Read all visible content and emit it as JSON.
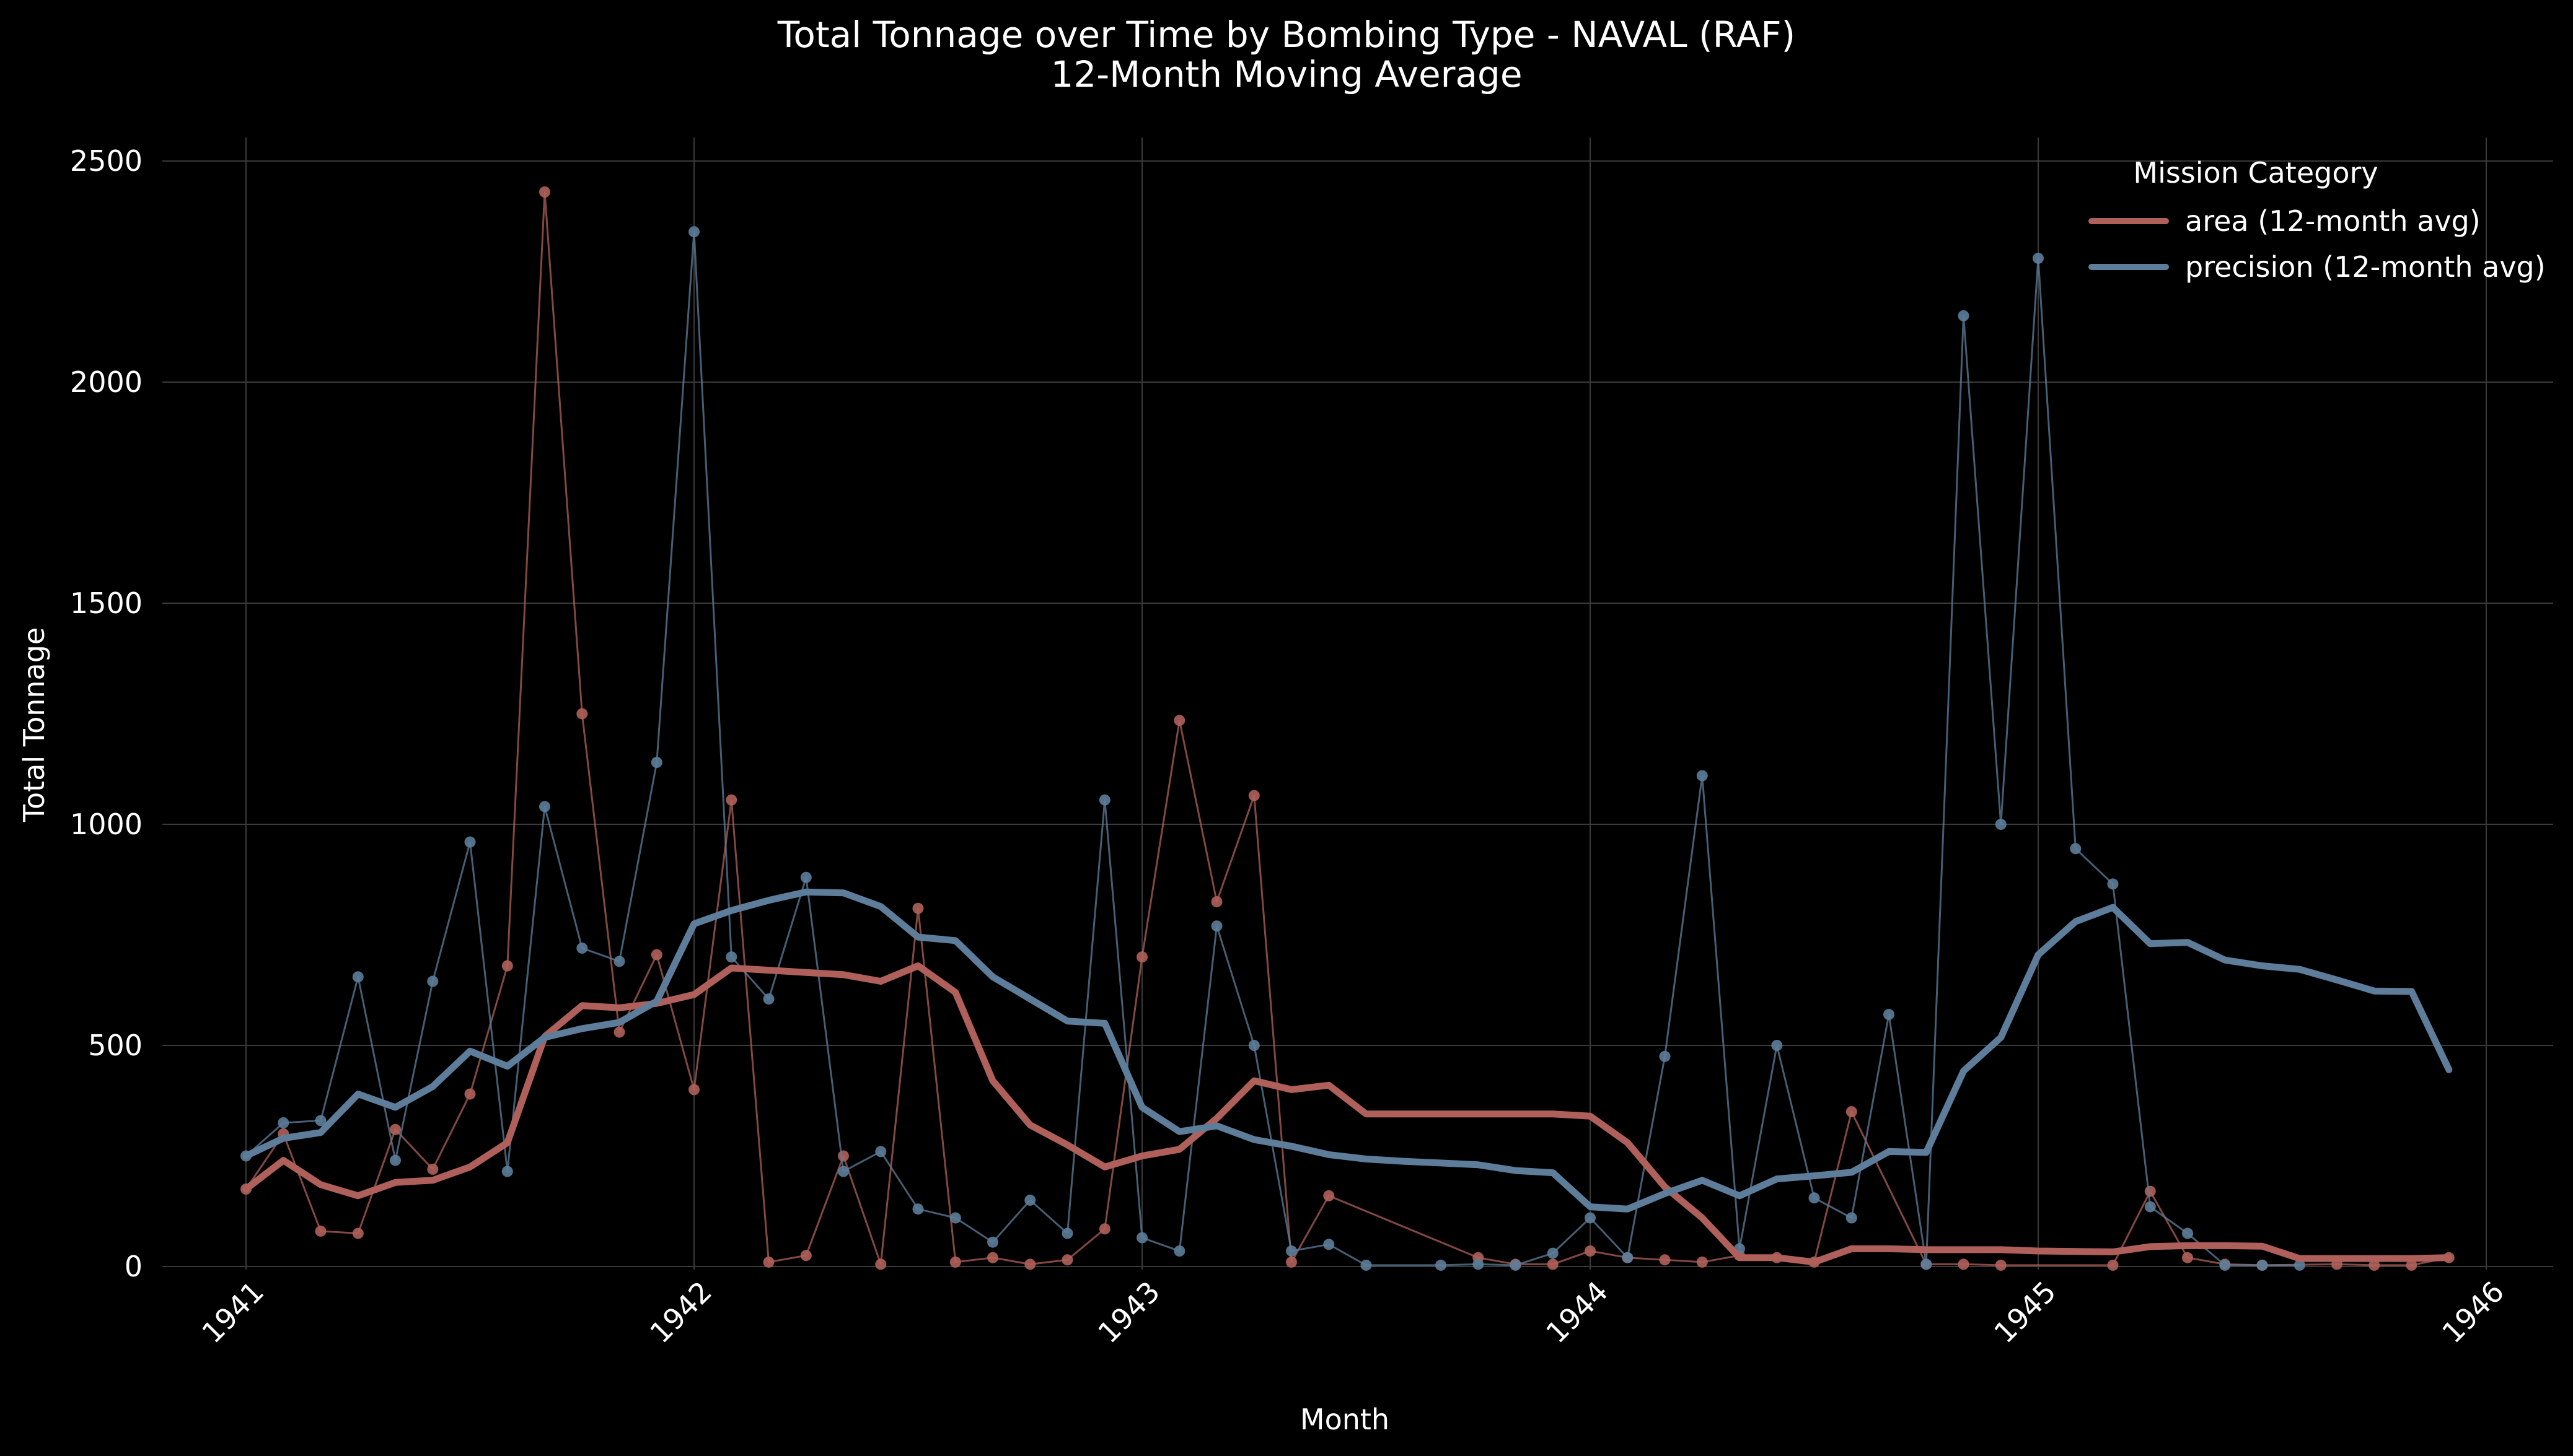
{
  "chart_data": {
    "type": "line",
    "title": "Total Tonnage over Time by Bombing Type - NAVAL (RAF)",
    "subtitle": "12-Month Moving Average",
    "xlabel": "Month",
    "ylabel": "Total Tonnage",
    "xlim": [
      "1941-01",
      "1946-01"
    ],
    "ylim": [
      0,
      2550
    ],
    "x_ticks": [
      "1941",
      "1942",
      "1943",
      "1944",
      "1945",
      "1946"
    ],
    "y_ticks": [
      0,
      500,
      1000,
      1500,
      2000,
      2500
    ],
    "grid": true,
    "legend": {
      "title": "Mission Category",
      "position": "top-right"
    },
    "series": [
      {
        "name": "area (12-month avg)",
        "color": "#b0605a",
        "raw_points": [
          [
            "1941-01",
            175
          ],
          [
            "1941-02",
            300
          ],
          [
            "1941-03",
            80
          ],
          [
            "1941-04",
            75
          ],
          [
            "1941-05",
            310
          ],
          [
            "1941-06",
            220
          ],
          [
            "1941-07",
            390
          ],
          [
            "1941-08",
            680
          ],
          [
            "1941-09",
            2430
          ],
          [
            "1941-10",
            1250
          ],
          [
            "1941-11",
            530
          ],
          [
            "1941-12",
            705
          ],
          [
            "1942-01",
            400
          ],
          [
            "1942-02",
            1055
          ],
          [
            "1942-03",
            10
          ],
          [
            "1942-04",
            25
          ],
          [
            "1942-05",
            250
          ],
          [
            "1942-06",
            5
          ],
          [
            "1942-07",
            810
          ],
          [
            "1942-08",
            10
          ],
          [
            "1942-09",
            20
          ],
          [
            "1942-10",
            5
          ],
          [
            "1942-11",
            15
          ],
          [
            "1942-12",
            85
          ],
          [
            "1943-01",
            700
          ],
          [
            "1943-02",
            1235
          ],
          [
            "1943-03",
            825
          ],
          [
            "1943-04",
            1065
          ],
          [
            "1943-05",
            10
          ],
          [
            "1943-06",
            160
          ],
          [
            "1943-10",
            20
          ],
          [
            "1943-11",
            5
          ],
          [
            "1943-12",
            5
          ],
          [
            "1944-01",
            35
          ],
          [
            "1944-02",
            20
          ],
          [
            "1944-03",
            15
          ],
          [
            "1944-04",
            10
          ],
          [
            "1944-05",
            25
          ],
          [
            "1944-06",
            20
          ],
          [
            "1944-07",
            10
          ],
          [
            "1944-08",
            350
          ],
          [
            "1944-10",
            5
          ],
          [
            "1944-11",
            5
          ],
          [
            "1944-12",
            3
          ],
          [
            "1945-03",
            3
          ],
          [
            "1945-04",
            170
          ],
          [
            "1945-05",
            20
          ],
          [
            "1945-06",
            5
          ],
          [
            "1945-07",
            3
          ],
          [
            "1945-09",
            5
          ],
          [
            "1945-10",
            3
          ],
          [
            "1945-11",
            3
          ],
          [
            "1945-12",
            20
          ]
        ],
        "avg_points": [
          [
            "1941-01",
            175
          ],
          [
            "1941-02",
            240
          ],
          [
            "1941-03",
            185
          ],
          [
            "1941-04",
            160
          ],
          [
            "1941-05",
            190
          ],
          [
            "1941-06",
            195
          ],
          [
            "1941-07",
            225
          ],
          [
            "1941-08",
            280
          ],
          [
            "1941-09",
            520
          ],
          [
            "1941-10",
            590
          ],
          [
            "1941-11",
            585
          ],
          [
            "1941-12",
            595
          ],
          [
            "1942-01",
            615
          ],
          [
            "1942-02",
            675
          ],
          [
            "1942-03",
            670
          ],
          [
            "1942-04",
            665
          ],
          [
            "1942-05",
            660
          ],
          [
            "1942-06",
            645
          ],
          [
            "1942-07",
            680
          ],
          [
            "1942-08",
            620
          ],
          [
            "1942-09",
            420
          ],
          [
            "1942-10",
            320
          ],
          [
            "1942-11",
            275
          ],
          [
            "1942-12",
            225
          ],
          [
            "1943-01",
            250
          ],
          [
            "1943-02",
            265
          ],
          [
            "1943-03",
            335
          ],
          [
            "1943-04",
            420
          ],
          [
            "1943-05",
            400
          ],
          [
            "1943-06",
            410
          ],
          [
            "1943-07",
            345
          ],
          [
            "1943-08",
            345
          ],
          [
            "1943-09",
            345
          ],
          [
            "1943-10",
            345
          ],
          [
            "1943-11",
            345
          ],
          [
            "1943-12",
            345
          ],
          [
            "1944-01",
            340
          ],
          [
            "1944-02",
            280
          ],
          [
            "1944-03",
            180
          ],
          [
            "1944-04",
            110
          ],
          [
            "1944-05",
            20
          ],
          [
            "1944-06",
            20
          ],
          [
            "1944-07",
            10
          ],
          [
            "1944-08",
            40
          ],
          [
            "1944-09",
            40
          ],
          [
            "1944-10",
            38
          ],
          [
            "1944-11",
            38
          ],
          [
            "1944-12",
            38
          ],
          [
            "1945-01",
            35
          ],
          [
            "1945-02",
            34
          ],
          [
            "1945-03",
            33
          ],
          [
            "1945-04",
            45
          ],
          [
            "1945-05",
            47
          ],
          [
            "1945-06",
            47
          ],
          [
            "1945-07",
            46
          ],
          [
            "1945-08",
            18
          ],
          [
            "1945-09",
            18
          ],
          [
            "1945-10",
            18
          ],
          [
            "1945-11",
            18
          ],
          [
            "1945-12",
            20
          ]
        ]
      },
      {
        "name": "precision (12-month avg)",
        "color": "#5d7d9a",
        "raw_points": [
          [
            "1941-01",
            250
          ],
          [
            "1941-02",
            325
          ],
          [
            "1941-03",
            330
          ],
          [
            "1941-04",
            655
          ],
          [
            "1941-05",
            240
          ],
          [
            "1941-06",
            645
          ],
          [
            "1941-07",
            960
          ],
          [
            "1941-08",
            215
          ],
          [
            "1941-09",
            1040
          ],
          [
            "1941-10",
            720
          ],
          [
            "1941-11",
            690
          ],
          [
            "1941-12",
            1140
          ],
          [
            "1942-01",
            2340
          ],
          [
            "1942-02",
            700
          ],
          [
            "1942-03",
            605
          ],
          [
            "1942-04",
            880
          ],
          [
            "1942-05",
            215
          ],
          [
            "1942-06",
            260
          ],
          [
            "1942-07",
            130
          ],
          [
            "1942-08",
            110
          ],
          [
            "1942-09",
            55
          ],
          [
            "1942-10",
            150
          ],
          [
            "1942-11",
            75
          ],
          [
            "1942-12",
            1055
          ],
          [
            "1943-01",
            65
          ],
          [
            "1943-02",
            35
          ],
          [
            "1943-03",
            770
          ],
          [
            "1943-04",
            500
          ],
          [
            "1943-05",
            35
          ],
          [
            "1943-06",
            50
          ],
          [
            "1943-07",
            3
          ],
          [
            "1943-09",
            3
          ],
          [
            "1943-10",
            5
          ],
          [
            "1943-11",
            3
          ],
          [
            "1943-12",
            30
          ],
          [
            "1944-01",
            110
          ],
          [
            "1944-02",
            20
          ],
          [
            "1944-03",
            475
          ],
          [
            "1944-04",
            1110
          ],
          [
            "1944-05",
            40
          ],
          [
            "1944-06",
            500
          ],
          [
            "1944-07",
            155
          ],
          [
            "1944-08",
            110
          ],
          [
            "1944-09",
            570
          ],
          [
            "1944-10",
            5
          ],
          [
            "1944-11",
            2150
          ],
          [
            "1944-12",
            1000
          ],
          [
            "1945-01",
            2280
          ],
          [
            "1945-02",
            945
          ],
          [
            "1945-03",
            865
          ],
          [
            "1945-04",
            135
          ],
          [
            "1945-05",
            75
          ],
          [
            "1945-06",
            3
          ],
          [
            "1945-07",
            3
          ],
          [
            "1945-08",
            3
          ]
        ],
        "avg_points": [
          [
            "1941-01",
            250
          ],
          [
            "1941-02",
            290
          ],
          [
            "1941-03",
            303
          ],
          [
            "1941-04",
            390
          ],
          [
            "1941-05",
            360
          ],
          [
            "1941-06",
            407
          ],
          [
            "1941-07",
            487
          ],
          [
            "1941-08",
            453
          ],
          [
            "1941-09",
            518
          ],
          [
            "1941-10",
            538
          ],
          [
            "1941-11",
            552
          ],
          [
            "1941-12",
            600
          ],
          [
            "1942-01",
            775
          ],
          [
            "1942-02",
            805
          ],
          [
            "1942-03",
            828
          ],
          [
            "1942-04",
            847
          ],
          [
            "1942-05",
            845
          ],
          [
            "1942-06",
            814
          ],
          [
            "1942-07",
            745
          ],
          [
            "1942-08",
            737
          ],
          [
            "1942-09",
            655
          ],
          [
            "1942-10",
            605
          ],
          [
            "1942-11",
            555
          ],
          [
            "1942-12",
            550
          ],
          [
            "1943-01",
            360
          ],
          [
            "1943-02",
            305
          ],
          [
            "1943-03",
            318
          ],
          [
            "1943-04",
            287
          ],
          [
            "1943-05",
            272
          ],
          [
            "1943-06",
            253
          ],
          [
            "1943-07",
            243
          ],
          [
            "1943-08",
            238
          ],
          [
            "1943-09",
            234
          ],
          [
            "1943-10",
            230
          ],
          [
            "1943-11",
            217
          ],
          [
            "1943-12",
            212
          ],
          [
            "1944-01",
            135
          ],
          [
            "1944-02",
            130
          ],
          [
            "1944-03",
            165
          ],
          [
            "1944-04",
            195
          ],
          [
            "1944-05",
            160
          ],
          [
            "1944-06",
            198
          ],
          [
            "1944-07",
            205
          ],
          [
            "1944-08",
            213
          ],
          [
            "1944-09",
            260
          ],
          [
            "1944-10",
            258
          ],
          [
            "1944-11",
            442
          ],
          [
            "1944-12",
            518
          ],
          [
            "1945-01",
            705
          ],
          [
            "1945-02",
            780
          ],
          [
            "1945-03",
            812
          ],
          [
            "1945-04",
            730
          ],
          [
            "1945-05",
            733
          ],
          [
            "1945-06",
            693
          ],
          [
            "1945-07",
            680
          ],
          [
            "1945-08",
            672
          ],
          [
            "1945-09",
            648
          ],
          [
            "1945-10",
            623
          ],
          [
            "1945-11",
            622
          ],
          [
            "1945-12",
            445
          ]
        ]
      }
    ]
  }
}
